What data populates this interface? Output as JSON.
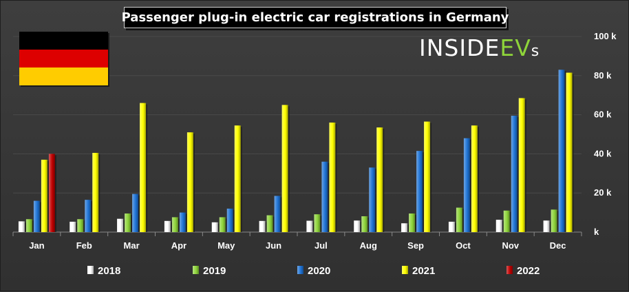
{
  "title": "Passenger plug-in electric car registrations in Germany",
  "logo": {
    "main": "INSIDE",
    "accent": "EV",
    "suffix": "s"
  },
  "flag": {
    "colors": [
      "#000000",
      "#dd0000",
      "#ffcc00"
    ]
  },
  "chart_data": {
    "type": "bar",
    "title": "Passenger plug-in electric car registrations in Germany",
    "categories": [
      "Jan",
      "Feb",
      "Mar",
      "Apr",
      "May",
      "Jun",
      "Jul",
      "Aug",
      "Sep",
      "Oct",
      "Nov",
      "Dec"
    ],
    "series": [
      {
        "name": "2018",
        "color": "#ffffff",
        "values": [
          5.5,
          5.3,
          6.8,
          5.7,
          5.0,
          5.7,
          5.8,
          5.9,
          4.5,
          5.3,
          6.3,
          5.9
        ]
      },
      {
        "name": "2019",
        "color": "#8ed43a",
        "values": [
          6.6,
          6.6,
          9.5,
          7.6,
          7.6,
          8.6,
          9.1,
          8.1,
          9.5,
          12.5,
          11.0,
          11.5
        ]
      },
      {
        "name": "2020",
        "color": "#1f74d6",
        "values": [
          16.0,
          16.5,
          19.5,
          10.0,
          12.0,
          18.5,
          36.0,
          33.0,
          41.5,
          48.0,
          59.5,
          83.0
        ]
      },
      {
        "name": "2021",
        "color": "#ffff00",
        "values": [
          37.0,
          40.5,
          66.0,
          51.0,
          54.5,
          65.0,
          56.0,
          53.5,
          56.5,
          54.5,
          68.5,
          81.5
        ]
      },
      {
        "name": "2022",
        "color": "#c00000",
        "values": [
          40.0,
          null,
          null,
          null,
          null,
          null,
          null,
          null,
          null,
          null,
          null,
          null
        ]
      }
    ],
    "yaxis": {
      "ticks": [
        "k",
        "20 k",
        "40 k",
        "60 k",
        "80 k",
        "100 k"
      ],
      "ylim": [
        0,
        100
      ],
      "position": "right"
    },
    "legend_position": "bottom"
  }
}
